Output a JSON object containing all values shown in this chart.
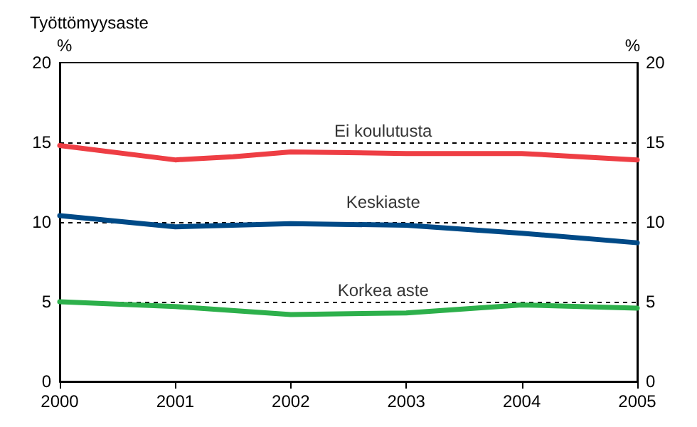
{
  "chart_data": {
    "type": "line",
    "title": "Työttömyysaste",
    "ylabel": "%",
    "y2label": "%",
    "xlim": [
      2000,
      2005
    ],
    "xticks": [
      2000,
      2001,
      2002,
      2003,
      2004,
      2005
    ],
    "ylim": [
      0,
      20
    ],
    "yticks": [
      0,
      5,
      10,
      15,
      20
    ],
    "y2lim": [
      0,
      20
    ],
    "y2ticks": [
      0,
      5,
      10,
      15,
      20
    ],
    "grid": "y",
    "legend": false,
    "marker": "none",
    "line_style": "solid",
    "series": [
      {
        "name": "Ei koulutusta",
        "color": "#ee3e44",
        "x": [
          2000,
          2001,
          2001.5,
          2002,
          2003,
          2004,
          2004.5,
          2005
        ],
        "values": [
          14.8,
          13.9,
          14.1,
          14.4,
          14.3,
          14.3,
          14.1,
          13.9
        ]
      },
      {
        "name": "Keskiaste",
        "color": "#004a87",
        "x": [
          2000,
          2001,
          2002,
          2003,
          2004,
          2005
        ],
        "values": [
          10.4,
          9.7,
          9.9,
          9.8,
          9.3,
          8.7
        ]
      },
      {
        "name": "Korkea aste",
        "color": "#2db04b",
        "x": [
          2000,
          2001,
          2002,
          2003,
          2004,
          2005
        ],
        "values": [
          5.0,
          4.7,
          4.2,
          4.3,
          4.8,
          4.6
        ]
      }
    ]
  }
}
